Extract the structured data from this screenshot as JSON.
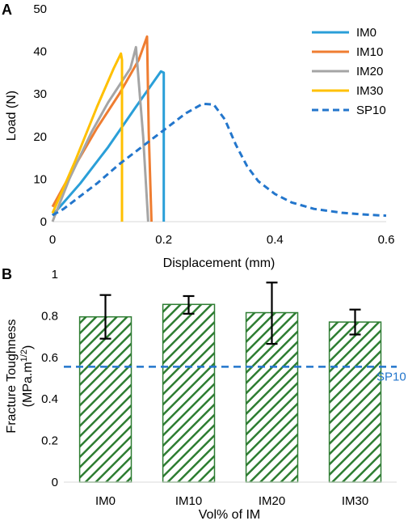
{
  "chart_data": [
    {
      "panel": "A",
      "type": "line",
      "xlabel": "Displacement (mm)",
      "ylabel": "Load (N)",
      "xlim": [
        0,
        0.6
      ],
      "ylim": [
        0,
        50
      ],
      "xticks": [
        "0",
        "0.2",
        "0.4",
        "0.6"
      ],
      "yticks": [
        "0",
        "10",
        "20",
        "30",
        "40",
        "50"
      ],
      "legend_position": "top-right",
      "series": [
        {
          "name": "IM0",
          "color": "#2a9fd8",
          "dash": "solid",
          "x": [
            0,
            0.05,
            0.1,
            0.15,
            0.195,
            0.2,
            0.2
          ],
          "y": [
            1.5,
            9,
            17.5,
            27,
            35.3,
            35,
            0
          ]
        },
        {
          "name": "IM10",
          "color": "#ef7d31",
          "dash": "solid",
          "x": [
            0,
            0.04,
            0.08,
            0.12,
            0.155,
            0.17,
            0.173,
            0.178
          ],
          "y": [
            3.5,
            13,
            22,
            30,
            38,
            43.5,
            21,
            0
          ]
        },
        {
          "name": "IM20",
          "color": "#a5a5a5",
          "dash": "solid",
          "x": [
            0,
            0.03,
            0.07,
            0.1,
            0.14,
            0.15,
            0.163,
            0.172
          ],
          "y": [
            0,
            10,
            21,
            28,
            36,
            41,
            20,
            0
          ]
        },
        {
          "name": "IM30",
          "color": "#ffc000",
          "dash": "solid",
          "x": [
            0,
            0.04,
            0.08,
            0.11,
            0.123,
            0.125,
            0.125
          ],
          "y": [
            2,
            14,
            27,
            36,
            39.5,
            38,
            0
          ]
        },
        {
          "name": "SP10",
          "color": "#2376cc",
          "dash": "dashed",
          "x": [
            0,
            0.02,
            0.05,
            0.08,
            0.12,
            0.16,
            0.2,
            0.24,
            0.27,
            0.29,
            0.31,
            0.33,
            0.35,
            0.37,
            0.4,
            0.43,
            0.47,
            0.52,
            0.57,
            0.6
          ],
          "y": [
            1.5,
            3,
            6,
            9,
            13.5,
            17.5,
            21.5,
            25.5,
            27.7,
            27.5,
            24,
            18,
            13,
            9.5,
            6.5,
            4.5,
            3,
            2.1,
            1.6,
            1.4
          ]
        }
      ]
    },
    {
      "panel": "B",
      "type": "bar",
      "xlabel": "Vol% of IM",
      "ylabel_line1": "Fracture Toughness",
      "ylabel_line2_prefix": "(MPa.m",
      "ylabel_line2_sup": "1/2",
      "ylabel_line2_suffix": ")",
      "ylim": [
        0,
        1
      ],
      "yticks": [
        "0",
        "0.2",
        "0.4",
        "0.6",
        "0.8",
        "1"
      ],
      "categories": [
        "IM0",
        "IM10",
        "IM20",
        "IM30"
      ],
      "values": [
        0.795,
        0.855,
        0.815,
        0.77
      ],
      "error_low": [
        0.69,
        0.81,
        0.665,
        0.71
      ],
      "error_high": [
        0.9,
        0.895,
        0.96,
        0.83
      ],
      "bar_color": "#2e7d32",
      "bar_fill": "diagonal-hatch",
      "reference_line": {
        "label": "SP10",
        "value": 0.555,
        "color": "#2376cc"
      }
    }
  ]
}
